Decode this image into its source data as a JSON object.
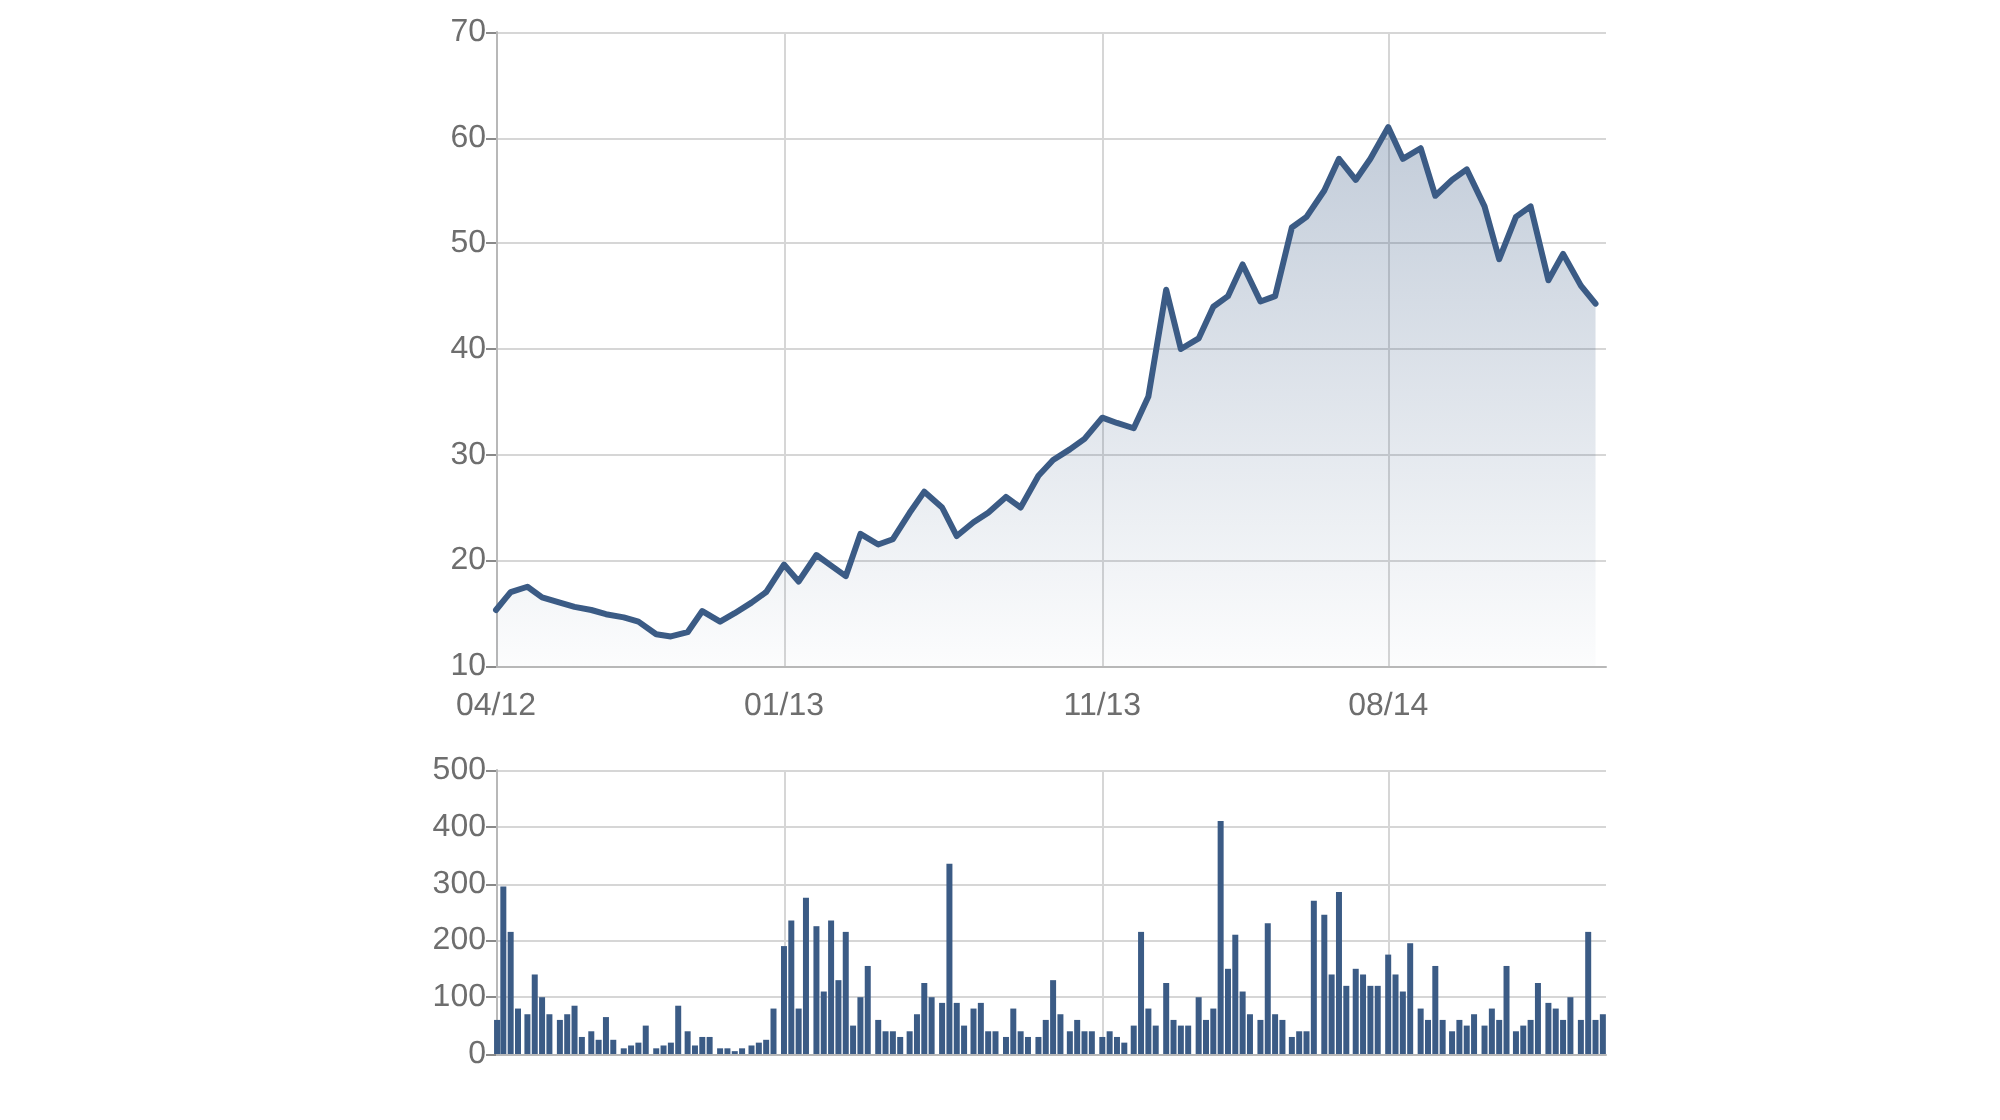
{
  "chart_data": [
    {
      "type": "area",
      "x": [
        "2012-04-01",
        "2012-04-15",
        "2012-05-01",
        "2012-05-15",
        "2012-06-01",
        "2012-06-15",
        "2012-07-01",
        "2012-07-15",
        "2012-08-01",
        "2012-08-15",
        "2012-09-01",
        "2012-09-15",
        "2012-10-01",
        "2012-10-15",
        "2012-11-01",
        "2012-11-15",
        "2012-12-01",
        "2012-12-15",
        "2013-01-01",
        "2013-01-15",
        "2013-02-01",
        "2013-02-15",
        "2013-03-01",
        "2013-03-15",
        "2013-04-01",
        "2013-04-15",
        "2013-05-01",
        "2013-05-15",
        "2013-06-01",
        "2013-06-15",
        "2013-07-01",
        "2013-07-15",
        "2013-08-01",
        "2013-08-15",
        "2013-09-01",
        "2013-09-15",
        "2013-10-01",
        "2013-10-15",
        "2013-11-01",
        "2013-11-15",
        "2013-12-01",
        "2013-12-15",
        "2014-01-01",
        "2014-01-15",
        "2014-02-01",
        "2014-02-15",
        "2014-03-01",
        "2014-03-15",
        "2014-04-01",
        "2014-04-15",
        "2014-05-01",
        "2014-05-15",
        "2014-06-01",
        "2014-06-15",
        "2014-07-01",
        "2014-07-15",
        "2014-08-01",
        "2014-08-15",
        "2014-09-01",
        "2014-09-15",
        "2014-10-01",
        "2014-10-15",
        "2014-11-01",
        "2014-11-15",
        "2014-12-01",
        "2014-12-15",
        "2015-01-01",
        "2015-01-15",
        "2015-02-01",
        "2015-02-15"
      ],
      "values": [
        15.3,
        17.0,
        17.5,
        16.5,
        16.0,
        15.6,
        15.3,
        14.9,
        14.6,
        14.2,
        13.0,
        12.8,
        13.2,
        15.2,
        14.2,
        15.0,
        16.0,
        17.0,
        19.6,
        18.0,
        20.5,
        19.5,
        18.5,
        22.5,
        21.5,
        22.0,
        24.5,
        26.5,
        25.0,
        22.3,
        23.6,
        24.5,
        26.0,
        25.0,
        28.0,
        29.5,
        30.5,
        31.5,
        33.5,
        33.0,
        32.5,
        35.5,
        45.6,
        40.0,
        41.0,
        44.0,
        45.0,
        48.0,
        44.5,
        45.0,
        51.5,
        52.5,
        55.0,
        58.0,
        56.0,
        58.0,
        61.0,
        58.0,
        59.0,
        54.5,
        56.0,
        57.0,
        53.5,
        48.5,
        52.5,
        53.5,
        46.5,
        49.0,
        46.0,
        44.3
      ],
      "color": "#3b5b85",
      "xlim": [
        "2012-04-01",
        "2015-02-25"
      ],
      "xticks": [
        {
          "value": "2012-04",
          "label": "04/12"
        },
        {
          "value": "2013-01",
          "label": "01/13"
        },
        {
          "value": "2013-11",
          "label": "11/13"
        },
        {
          "value": "2014-08",
          "label": "08/14"
        }
      ],
      "ylim": [
        10,
        70
      ],
      "yticks": [
        10,
        20,
        30,
        40,
        50,
        60,
        70
      ],
      "grid": true
    },
    {
      "type": "bar",
      "x": [
        "2012-04-02",
        "2012-04-08",
        "2012-04-15",
        "2012-04-22",
        "2012-05-01",
        "2012-05-08",
        "2012-05-15",
        "2012-05-22",
        "2012-06-01",
        "2012-06-08",
        "2012-06-15",
        "2012-06-22",
        "2012-07-01",
        "2012-07-08",
        "2012-07-15",
        "2012-07-22",
        "2012-08-01",
        "2012-08-08",
        "2012-08-15",
        "2012-08-22",
        "2012-09-01",
        "2012-09-08",
        "2012-09-15",
        "2012-09-22",
        "2012-10-01",
        "2012-10-08",
        "2012-10-15",
        "2012-10-22",
        "2012-11-01",
        "2012-11-08",
        "2012-11-15",
        "2012-11-22",
        "2012-12-01",
        "2012-12-08",
        "2012-12-15",
        "2012-12-22",
        "2013-01-01",
        "2013-01-08",
        "2013-01-15",
        "2013-01-22",
        "2013-02-01",
        "2013-02-08",
        "2013-02-15",
        "2013-02-22",
        "2013-03-01",
        "2013-03-08",
        "2013-03-15",
        "2013-03-22",
        "2013-04-01",
        "2013-04-08",
        "2013-04-15",
        "2013-04-22",
        "2013-05-01",
        "2013-05-08",
        "2013-05-15",
        "2013-05-22",
        "2013-06-01",
        "2013-06-08",
        "2013-06-15",
        "2013-06-22",
        "2013-07-01",
        "2013-07-08",
        "2013-07-15",
        "2013-07-22",
        "2013-08-01",
        "2013-08-08",
        "2013-08-15",
        "2013-08-22",
        "2013-09-01",
        "2013-09-08",
        "2013-09-15",
        "2013-09-22",
        "2013-10-01",
        "2013-10-08",
        "2013-10-15",
        "2013-10-22",
        "2013-11-01",
        "2013-11-08",
        "2013-11-15",
        "2013-11-22",
        "2013-12-01",
        "2013-12-08",
        "2013-12-15",
        "2013-12-22",
        "2014-01-01",
        "2014-01-08",
        "2014-01-15",
        "2014-01-22",
        "2014-02-01",
        "2014-02-08",
        "2014-02-15",
        "2014-02-22",
        "2014-03-01",
        "2014-03-08",
        "2014-03-15",
        "2014-03-22",
        "2014-04-01",
        "2014-04-08",
        "2014-04-15",
        "2014-04-22",
        "2014-05-01",
        "2014-05-08",
        "2014-05-15",
        "2014-05-22",
        "2014-06-01",
        "2014-06-08",
        "2014-06-15",
        "2014-06-22",
        "2014-07-01",
        "2014-07-08",
        "2014-07-15",
        "2014-07-22",
        "2014-08-01",
        "2014-08-08",
        "2014-08-15",
        "2014-08-22",
        "2014-09-01",
        "2014-09-08",
        "2014-09-15",
        "2014-09-22",
        "2014-10-01",
        "2014-10-08",
        "2014-10-15",
        "2014-10-22",
        "2014-11-01",
        "2014-11-08",
        "2014-11-15",
        "2014-11-22",
        "2014-12-01",
        "2014-12-08",
        "2014-12-15",
        "2014-12-22",
        "2015-01-01",
        "2015-01-08",
        "2015-01-15",
        "2015-01-22",
        "2015-02-01",
        "2015-02-08",
        "2015-02-15",
        "2015-02-22"
      ],
      "values": [
        60,
        295,
        215,
        80,
        70,
        140,
        100,
        70,
        60,
        70,
        85,
        30,
        40,
        25,
        65,
        25,
        10,
        15,
        20,
        50,
        10,
        15,
        20,
        85,
        40,
        15,
        30,
        30,
        10,
        10,
        5,
        10,
        15,
        20,
        25,
        80,
        190,
        235,
        80,
        275,
        225,
        110,
        235,
        130,
        215,
        50,
        100,
        155,
        60,
        40,
        40,
        30,
        40,
        70,
        125,
        100,
        90,
        335,
        90,
        50,
        80,
        90,
        40,
        40,
        30,
        80,
        40,
        30,
        30,
        60,
        130,
        70,
        40,
        60,
        40,
        40,
        30,
        40,
        30,
        20,
        50,
        215,
        80,
        50,
        125,
        60,
        50,
        50,
        100,
        60,
        80,
        410,
        150,
        210,
        110,
        70,
        60,
        230,
        70,
        60,
        30,
        40,
        40,
        270,
        245,
        140,
        285,
        120,
        150,
        140,
        120,
        120,
        175,
        140,
        110,
        195,
        80,
        60,
        155,
        60,
        40,
        60,
        50,
        70,
        50,
        80,
        60,
        155,
        40,
        50,
        60,
        125,
        90,
        80,
        60,
        100,
        60,
        215,
        60,
        70
      ],
      "color": "#3b5b85",
      "xlim": [
        "2012-04-01",
        "2015-02-25"
      ],
      "xticks": [
        {
          "value": "2012-04",
          "label": null
        },
        {
          "value": "2013-01",
          "label": null
        },
        {
          "value": "2013-11",
          "label": null
        },
        {
          "value": "2014-08",
          "label": null
        }
      ],
      "ylim": [
        0,
        500
      ],
      "yticks": [
        0,
        100,
        200,
        300,
        400,
        500
      ],
      "grid": true,
      "tick_labels": "y"
    }
  ]
}
